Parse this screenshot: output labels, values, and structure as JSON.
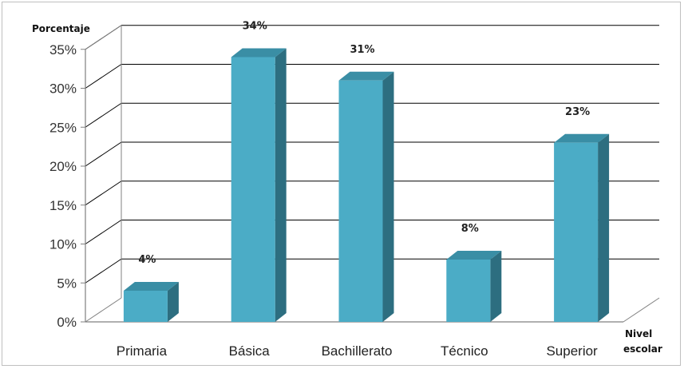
{
  "chart_data": {
    "type": "bar",
    "style": "3d-column",
    "ylabel": "Porcentaje",
    "xlabel": "Nivel escolar",
    "categories": [
      "Primaria",
      "Básica",
      "Bachillerato",
      "Técnico",
      "Superior"
    ],
    "values": [
      4,
      34,
      31,
      8,
      23
    ],
    "data_labels": [
      "4%",
      "34%",
      "31%",
      "8%",
      "23%"
    ],
    "ylim": [
      0,
      35
    ],
    "yticks": [
      0,
      5,
      10,
      15,
      20,
      25,
      30,
      35
    ],
    "ytick_labels": [
      "0%",
      "5%",
      "10%",
      "15%",
      "20%",
      "25%",
      "30%",
      "35%"
    ],
    "grid": true,
    "legend": "none",
    "colors": {
      "bar_front": "#4bacc6",
      "bar_side": "#2d6e80",
      "bar_top": "#3a8ea5",
      "gridline": "#000000",
      "axis": "#808080"
    }
  }
}
